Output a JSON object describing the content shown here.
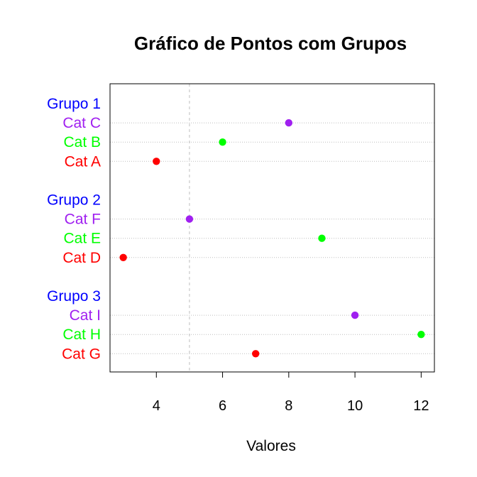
{
  "chart_data": {
    "type": "scatter",
    "subtype": "dotchart",
    "title": "Gráfico de Pontos com Grupos",
    "xlabel": "Valores",
    "ylabel": "",
    "xlim": [
      2.6,
      12.4
    ],
    "x_ticks": [
      4,
      6,
      8,
      10,
      12
    ],
    "grid": "dotted horizontal lines per category",
    "reference_line": {
      "x": 5,
      "style": "dashed",
      "color": "#bebebe"
    },
    "group_label_color": "#0000ff",
    "groups": [
      {
        "name": "Grupo 1",
        "items": [
          {
            "label": "Cat C",
            "value": 8,
            "color": "#a020f0"
          },
          {
            "label": "Cat B",
            "value": 6,
            "color": "#00ff00"
          },
          {
            "label": "Cat A",
            "value": 4,
            "color": "#ff0000"
          }
        ]
      },
      {
        "name": "Grupo 2",
        "items": [
          {
            "label": "Cat F",
            "value": 5,
            "color": "#a020f0"
          },
          {
            "label": "Cat E",
            "value": 9,
            "color": "#00ff00"
          },
          {
            "label": "Cat D",
            "value": 3,
            "color": "#ff0000"
          }
        ]
      },
      {
        "name": "Grupo 3",
        "items": [
          {
            "label": "Cat I",
            "value": 10,
            "color": "#a020f0"
          },
          {
            "label": "Cat H",
            "value": 12,
            "color": "#00ff00"
          },
          {
            "label": "Cat G",
            "value": 7,
            "color": "#ff0000"
          }
        ]
      }
    ]
  }
}
